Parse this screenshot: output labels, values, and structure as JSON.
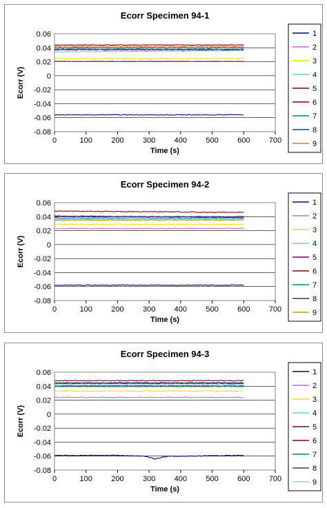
{
  "chart_data": [
    {
      "type": "line",
      "title": "Ecorr Specimen 94-1",
      "xlabel": "Time (s)",
      "ylabel": "Ecorr (V)",
      "xlim": [
        0,
        700
      ],
      "ylim": [
        -0.08,
        0.06
      ],
      "xticks": [
        "0",
        "100",
        "200",
        "300",
        "400",
        "500",
        "600",
        "700"
      ],
      "yticks": [
        "0.06",
        "0.04",
        "0.02",
        "0",
        "-0.02",
        "-0.04",
        "-0.06",
        "-0.08"
      ],
      "grid": true,
      "legend_position": "right",
      "series": [
        {
          "name": "1",
          "color": "#000080",
          "x": [
            0,
            600
          ],
          "y": [
            -0.056,
            -0.056
          ]
        },
        {
          "name": "2",
          "color": "#cc66cc",
          "x": [
            0,
            600
          ],
          "y": [
            0.021,
            0.021
          ]
        },
        {
          "name": "3",
          "color": "#e6e600",
          "x": [
            0,
            600
          ],
          "y": [
            0.025,
            0.025
          ]
        },
        {
          "name": "4",
          "color": "#66cccc",
          "x": [
            0,
            600
          ],
          "y": [
            0.034,
            0.036
          ]
        },
        {
          "name": "5",
          "color": "#660066",
          "x": [
            0,
            600
          ],
          "y": [
            0.037,
            0.037
          ]
        },
        {
          "name": "6",
          "color": "#800000",
          "x": [
            0,
            600
          ],
          "y": [
            0.044,
            0.044
          ]
        },
        {
          "name": "7",
          "color": "#008080",
          "x": [
            0,
            600
          ],
          "y": [
            0.038,
            0.038
          ]
        },
        {
          "name": "8",
          "color": "#1f3f7f",
          "x": [
            0,
            600
          ],
          "y": [
            0.04,
            0.04
          ]
        },
        {
          "name": "9",
          "color": "#d4743a",
          "x": [
            0,
            600
          ],
          "y": [
            0.042,
            0.042
          ]
        }
      ]
    },
    {
      "type": "line",
      "title": "Ecorr Specimen 94-2",
      "xlabel": "Time (s)",
      "ylabel": "Ecorr (V)",
      "xlim": [
        0,
        700
      ],
      "ylim": [
        -0.08,
        0.06
      ],
      "xticks": [
        "0",
        "100",
        "200",
        "300",
        "400",
        "500",
        "600",
        "700"
      ],
      "yticks": [
        "0.06",
        "0.04",
        "0.02",
        "0",
        "-0.02",
        "-0.04",
        "-0.06",
        "-0.08"
      ],
      "grid": true,
      "legend_position": "right",
      "series": [
        {
          "name": "1",
          "color": "#000080",
          "x": [
            0,
            600
          ],
          "y": [
            -0.058,
            -0.058
          ]
        },
        {
          "name": "2",
          "color": "#cc66cc",
          "x": [
            0,
            600
          ],
          "y": [
            0.023,
            0.023
          ]
        },
        {
          "name": "3",
          "color": "#e6e600",
          "x": [
            0,
            600
          ],
          "y": [
            0.029,
            0.029
          ]
        },
        {
          "name": "4",
          "color": "#66cccc",
          "x": [
            0,
            600
          ],
          "y": [
            0.036,
            0.036
          ]
        },
        {
          "name": "5",
          "color": "#660066",
          "x": [
            0,
            600
          ],
          "y": [
            0.041,
            0.039
          ]
        },
        {
          "name": "6",
          "color": "#800000",
          "x": [
            0,
            600
          ],
          "y": [
            0.048,
            0.046
          ]
        },
        {
          "name": "7",
          "color": "#008080",
          "x": [
            0,
            600
          ],
          "y": [
            0.038,
            0.038
          ]
        },
        {
          "name": "8",
          "color": "#1f3f7f",
          "x": [
            0,
            600
          ],
          "y": [
            0.04,
            0.04
          ]
        },
        {
          "name": "9",
          "color": "#b8a000",
          "x": [
            0,
            600
          ],
          "y": [
            0.035,
            0.035
          ]
        }
      ]
    },
    {
      "type": "line",
      "title": "Ecorr Specimen 94-3",
      "xlabel": "Time (s)",
      "ylabel": "Ecorr (V)",
      "xlim": [
        0,
        700
      ],
      "ylim": [
        -0.08,
        0.06
      ],
      "xticks": [
        "0",
        "100",
        "200",
        "300",
        "400",
        "500",
        "600",
        "700"
      ],
      "yticks": [
        "0.06",
        "0.04",
        "0.02",
        "0",
        "-0.02",
        "-0.04",
        "-0.06",
        "-0.08"
      ],
      "grid": true,
      "legend_position": "right",
      "series": [
        {
          "name": "1",
          "color": "#000080",
          "x": [
            0,
            200,
            280,
            300,
            320,
            340,
            360,
            400,
            600
          ],
          "y": [
            -0.059,
            -0.059,
            -0.06,
            -0.062,
            -0.064,
            -0.062,
            -0.06,
            -0.06,
            -0.059
          ]
        },
        {
          "name": "2",
          "color": "#cc66cc",
          "x": [
            0,
            600
          ],
          "y": [
            0.024,
            0.024
          ]
        },
        {
          "name": "3",
          "color": "#e6e600",
          "x": [
            0,
            600
          ],
          "y": [
            0.033,
            0.033
          ]
        },
        {
          "name": "4",
          "color": "#66cccc",
          "x": [
            0,
            600
          ],
          "y": [
            0.039,
            0.039
          ]
        },
        {
          "name": "5",
          "color": "#660066",
          "x": [
            0,
            600
          ],
          "y": [
            0.044,
            0.044
          ]
        },
        {
          "name": "6",
          "color": "#800000",
          "x": [
            0,
            600
          ],
          "y": [
            0.048,
            0.048
          ]
        },
        {
          "name": "7",
          "color": "#008080",
          "x": [
            0,
            600
          ],
          "y": [
            0.041,
            0.041
          ]
        },
        {
          "name": "8",
          "color": "#1f3f7f",
          "x": [
            0,
            600
          ],
          "y": [
            0.045,
            0.045
          ]
        },
        {
          "name": "9",
          "color": "#99ccee",
          "x": [
            0,
            600
          ],
          "y": [
            0.042,
            0.042
          ]
        }
      ]
    }
  ]
}
